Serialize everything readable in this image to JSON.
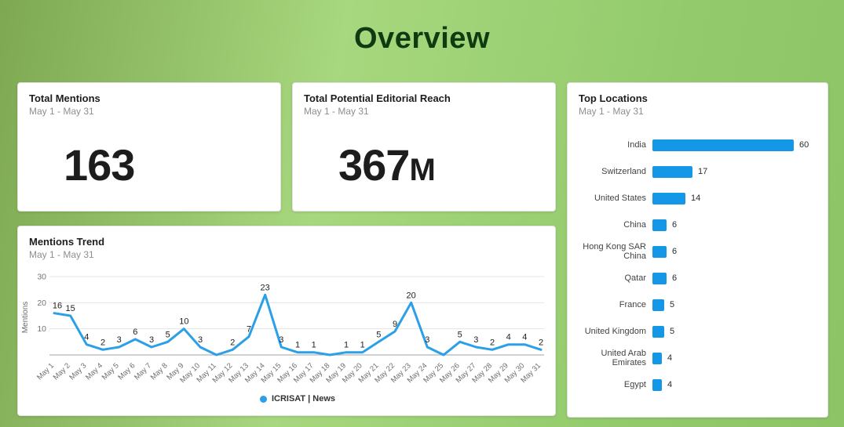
{
  "page": {
    "title": "Overview"
  },
  "cards": {
    "total_mentions": {
      "title": "Total Mentions",
      "date_range": "May 1 - May 31",
      "value": "163"
    },
    "total_reach": {
      "title": "Total Potential Editorial Reach",
      "date_range": "May 1 - May 31",
      "value": "367",
      "value_suffix": "M"
    },
    "mentions_trend": {
      "title": "Mentions Trend",
      "date_range": "May 1 - May 31",
      "legend": "ICRISAT | News"
    },
    "top_locations": {
      "title": "Top Locations",
      "date_range": "May 1 - May 31"
    }
  },
  "colors": {
    "accent_bar_blue": "#1397E6",
    "accent_line_blue": "#2B9FE8",
    "title_green": "#0E3B10",
    "grid_gray": "#e4e4e4",
    "axis_gray": "#b3b3b3",
    "tick_text": "#757575",
    "point_label": "#222222"
  },
  "icons": {
    "legend_dot": "legend-dot-icon"
  },
  "chart_data": [
    {
      "type": "line",
      "title": "Mentions Trend",
      "subtitle": "May 1 - May 31",
      "xlabel": "",
      "ylabel": "Mentions",
      "x": [
        "May 1",
        "May 2",
        "May 3",
        "May 4",
        "May 5",
        "May 6",
        "May 7",
        "May 8",
        "May 9",
        "May 10",
        "May 11",
        "May 12",
        "May 13",
        "May 14",
        "May 15",
        "May 16",
        "May 17",
        "May 18",
        "May 19",
        "May 20",
        "May 21",
        "May 22",
        "May 23",
        "May 24",
        "May 25",
        "May 26",
        "May 27",
        "May 28",
        "May 29",
        "May 30",
        "May 31"
      ],
      "series": [
        {
          "name": "ICRISAT | News",
          "values": [
            16,
            15,
            4,
            2,
            3,
            6,
            3,
            5,
            10,
            3,
            0,
            2,
            7,
            23,
            3,
            1,
            1,
            0,
            1,
            1,
            5,
            9,
            20,
            3,
            0,
            5,
            3,
            2,
            4,
            4,
            2
          ]
        }
      ],
      "ylim": [
        0,
        30
      ],
      "yticks": [
        10,
        20,
        30
      ],
      "grid": true,
      "point_labels": true,
      "zero_point_labels_hidden": true,
      "legend_position": "bottom"
    },
    {
      "type": "bar",
      "orientation": "horizontal",
      "title": "Top Locations",
      "subtitle": "May 1 - May 31",
      "categories": [
        "India",
        "Switzerland",
        "United States",
        "China",
        "Hong Kong SAR China",
        "Qatar",
        "France",
        "United Kingdom",
        "United Arab Emirates",
        "Egypt"
      ],
      "values": [
        60,
        17,
        14,
        6,
        6,
        6,
        5,
        5,
        4,
        4
      ],
      "xlim": [
        0,
        60
      ],
      "value_labels": true
    }
  ]
}
